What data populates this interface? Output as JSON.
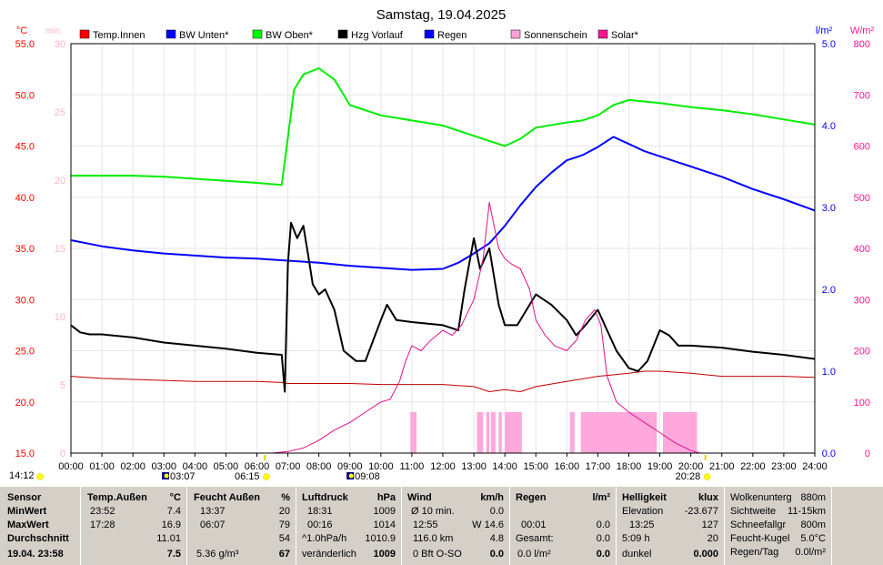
{
  "chart_data": {
    "type": "line",
    "title": "Samstag, 19.04.2025",
    "x_ticks": [
      "00:00",
      "01:00",
      "02:00",
      "03:00",
      "04:00",
      "05:00",
      "06:00",
      "07:00",
      "08:00",
      "09:00",
      "10:00",
      "11:00",
      "12:00",
      "13:00",
      "14:00",
      "15:00",
      "16:00",
      "17:00",
      "18:00",
      "19:00",
      "20:00",
      "21:00",
      "22:00",
      "23:00",
      "24:00"
    ],
    "axes": {
      "temp": {
        "unit": "°C",
        "ylim": [
          15,
          55
        ],
        "ticks": [
          "55.0",
          "50.0",
          "45.0",
          "40.0",
          "35.0",
          "30.0",
          "25.0",
          "20.0",
          "15.0"
        ]
      },
      "min": {
        "unit": "min",
        "ylim": [
          0,
          30
        ],
        "ticks": [
          "30",
          "25",
          "20",
          "15",
          "10",
          "5",
          "0"
        ]
      },
      "rain": {
        "unit": "l/m²",
        "ylim": [
          0,
          5
        ],
        "ticks": [
          "5.0",
          "4.0",
          "3.0",
          "2.0",
          "1.0",
          "0.0"
        ]
      },
      "solar": {
        "unit": "W/m²",
        "ylim": [
          0,
          800
        ],
        "ticks": [
          "800",
          "700",
          "600",
          "500",
          "400",
          "300",
          "200",
          "100",
          "0"
        ]
      }
    },
    "legend": [
      {
        "name": "Temp.Innen",
        "color": "#ff0000"
      },
      {
        "name": "BW Unten*",
        "color": "#0000ff"
      },
      {
        "name": "BW Oben*",
        "color": "#00ff00"
      },
      {
        "name": "Hzg Vorlauf",
        "color": "#000000"
      },
      {
        "name": "Regen",
        "color": "#0000ff"
      },
      {
        "name": "Sonnenschein",
        "color": "#ffa0d8"
      },
      {
        "name": "Solar*",
        "color": "#ff1493"
      }
    ],
    "series": [
      {
        "name": "Temp.Innen",
        "axis": "temp",
        "color": "#c00000",
        "x": [
          0,
          1,
          2,
          3,
          4,
          5,
          6,
          6.8,
          7,
          8,
          9,
          10,
          11,
          12,
          13,
          13.5,
          14,
          14.5,
          15,
          16,
          17,
          18,
          18.5,
          19,
          20,
          21,
          22,
          23,
          24
        ],
        "y": [
          22.5,
          22.3,
          22.2,
          22.1,
          22.0,
          22.0,
          22.0,
          21.9,
          21.8,
          21.8,
          21.8,
          21.7,
          21.7,
          21.7,
          21.5,
          21.0,
          21.2,
          21.0,
          21.5,
          22.0,
          22.5,
          22.8,
          23.0,
          23.0,
          22.8,
          22.5,
          22.5,
          22.5,
          22.4
        ]
      },
      {
        "name": "BW Unten*",
        "axis": "temp",
        "color": "#0000ff",
        "x": [
          0,
          1,
          2,
          3,
          4,
          5,
          6,
          7,
          8,
          9,
          10,
          11,
          12,
          12.5,
          13,
          13.5,
          14,
          14.5,
          15,
          15.5,
          16,
          16.5,
          17,
          17.5,
          18,
          18.5,
          19,
          19.5,
          20,
          21,
          22,
          23,
          24
        ],
        "y": [
          35.8,
          35.2,
          34.8,
          34.5,
          34.3,
          34.1,
          34.0,
          33.8,
          33.6,
          33.3,
          33.1,
          32.9,
          33.0,
          33.6,
          34.5,
          35.5,
          37.2,
          39.2,
          41.0,
          42.4,
          43.6,
          44.1,
          44.9,
          45.9,
          45.2,
          44.5,
          44.0,
          43.5,
          43.0,
          42.0,
          40.8,
          39.8,
          38.7
        ]
      },
      {
        "name": "BW Oben*",
        "axis": "temp",
        "color": "#00ee00",
        "x": [
          0,
          1,
          2,
          3,
          4,
          5,
          6,
          6.8,
          7.2,
          7.5,
          8,
          8.5,
          9,
          10,
          11,
          12,
          13,
          13.5,
          14,
          14.5,
          15,
          16,
          16.5,
          17,
          17.5,
          18,
          19,
          20,
          21,
          22,
          23,
          24
        ],
        "y": [
          42.1,
          42.1,
          42.1,
          42.0,
          41.8,
          41.6,
          41.4,
          41.2,
          50.5,
          52.0,
          52.6,
          51.5,
          49.0,
          48.0,
          47.5,
          47.0,
          46.0,
          45.5,
          45.0,
          45.7,
          46.8,
          47.3,
          47.5,
          48.0,
          49.0,
          49.5,
          49.2,
          48.8,
          48.5,
          48.1,
          47.6,
          47.1
        ]
      },
      {
        "name": "Hzg Vorlauf",
        "axis": "temp",
        "color": "#000000",
        "x": [
          0,
          0.3,
          0.6,
          1,
          2,
          3,
          4,
          5,
          6,
          6.8,
          6.9,
          7.0,
          7.1,
          7.3,
          7.5,
          7.7,
          7.8,
          8,
          8.2,
          8.5,
          8.8,
          9.2,
          9.5,
          10,
          10.2,
          10.5,
          11,
          12,
          12.5,
          12.7,
          13,
          13.2,
          13.5,
          13.8,
          14,
          14.4,
          15,
          15.5,
          16,
          16.3,
          16.6,
          17,
          17.3,
          17.6,
          18,
          18.3,
          18.6,
          19,
          19.3,
          19.6,
          20,
          21,
          22,
          23,
          24
        ],
        "y": [
          27.5,
          26.8,
          26.6,
          26.6,
          26.3,
          25.8,
          25.5,
          25.2,
          24.8,
          24.6,
          21.0,
          33.5,
          37.5,
          36.0,
          37.2,
          33.5,
          31.5,
          30.5,
          31.0,
          29.0,
          25.0,
          24.0,
          24.0,
          28.0,
          29.5,
          28.0,
          27.8,
          27.5,
          27.0,
          31.0,
          36.0,
          33.0,
          35.0,
          29.5,
          27.5,
          27.5,
          30.5,
          29.5,
          28.0,
          26.5,
          27.5,
          29.0,
          27.0,
          25.0,
          23.3,
          23.0,
          24.0,
          27.0,
          26.5,
          25.5,
          25.5,
          25.3,
          24.9,
          24.6,
          24.2
        ]
      },
      {
        "name": "Solar*",
        "axis": "solar",
        "color": "#e0108a",
        "x": [
          0,
          6.5,
          7,
          7.5,
          8,
          8.5,
          9,
          9.5,
          10,
          10.3,
          10.6,
          10.8,
          11,
          11.3,
          11.6,
          12,
          12.3,
          12.6,
          13,
          13.3,
          13.5,
          13.6,
          13.8,
          14,
          14.2,
          14.5,
          14.8,
          15,
          15.3,
          15.6,
          16,
          16.3,
          16.6,
          16.9,
          17.1,
          17.3,
          17.6,
          18,
          18.5,
          19,
          19.5,
          20,
          20.3,
          24
        ],
        "y": [
          0,
          0,
          3,
          10,
          25,
          45,
          60,
          80,
          100,
          105,
          140,
          180,
          210,
          200,
          220,
          240,
          230,
          250,
          300,
          380,
          490,
          460,
          400,
          380,
          370,
          360,
          320,
          260,
          230,
          210,
          200,
          220,
          260,
          280,
          250,
          150,
          100,
          80,
          60,
          40,
          20,
          5,
          0,
          0
        ]
      }
    ],
    "sunshine_blocks_h": [
      [
        10.95,
        11.15
      ],
      [
        13.1,
        13.3
      ],
      [
        13.4,
        13.5
      ],
      [
        13.55,
        13.7
      ],
      [
        13.8,
        13.9
      ],
      [
        14.0,
        14.55
      ],
      [
        16.1,
        16.25
      ],
      [
        16.45,
        18.9
      ],
      [
        19.1,
        20.2
      ]
    ]
  },
  "markers": {
    "sunrise_time": "06:15",
    "sunset_time": "20:28",
    "left_time": "14:12",
    "moon1_time": "03:07",
    "moon2_time": "09:08",
    "moon1_pos_h": 3.11,
    "moon2_pos_h": 9.13,
    "sunrise_pos_h": 6.25,
    "sunset_pos_h": 20.47
  },
  "stats": {
    "sensor": {
      "header": "Sensor",
      "min": "MinWert",
      "max": "MaxWert",
      "avg": "Durchschnitt",
      "date": "19.04. 23:58"
    },
    "temp": {
      "header": "Temp.Außen",
      "unit": "°C",
      "min_time": "23:52",
      "min_val": "7.4",
      "max_time": "17:28",
      "max_val": "16.9",
      "avg": "11.01",
      "current": "7.5"
    },
    "hum": {
      "header": "Feucht Außen",
      "unit": "%",
      "min_time": "13:37",
      "min_val": "20",
      "max_time": "06:07",
      "max_val": "79",
      "avg": "54",
      "abs": "5.36 g/m³",
      "current": "67"
    },
    "pressure": {
      "header": "Luftdruck",
      "unit": "hPa",
      "min_time": "18:31",
      "min_val": "1009",
      "max_time": "00:16",
      "max_val": "1014",
      "trend_label": "^1.0hPa/h",
      "trend_val": "1010.9",
      "status": "veränderlich",
      "current": "1009"
    },
    "wind": {
      "header": "Wind",
      "unit": "km/h",
      "avg_label": "Ø 10 min.",
      "avg_val": "0.0",
      "max_time": "12:55",
      "max_val": "W 14.6",
      "dist": "116.0 km",
      "avg": "4.8",
      "bft": "0 Bft O-SO",
      "current": "0.0"
    },
    "rain": {
      "header": "Regen",
      "unit": "l/m²",
      "max_time": "00:01",
      "max_val": "0.0",
      "total_label": "Gesamt:",
      "total_val": "0.0",
      "rate": "0.0 l/m²",
      "current": "0.0"
    },
    "light": {
      "header": "Helligkeit",
      "unit": "klux",
      "elev_label": "Elevation",
      "elev_val": "-23.677",
      "max_time": "13:25",
      "max_val": "127",
      "sun_dur": "5:09 h",
      "avg": "20",
      "status": "dunkel",
      "current": "0.000"
    },
    "weather": {
      "rows": [
        {
          "label": "Wolkenunterg",
          "value": "880m"
        },
        {
          "label": "Sichtweite",
          "value": "11-15km"
        },
        {
          "label": "Schneefallgr",
          "value": "800m"
        },
        {
          "label": "Feucht-Kugel",
          "value": "5.0°C"
        },
        {
          "label": "Regen/Tag",
          "value": "0.0l/m²"
        }
      ]
    }
  }
}
